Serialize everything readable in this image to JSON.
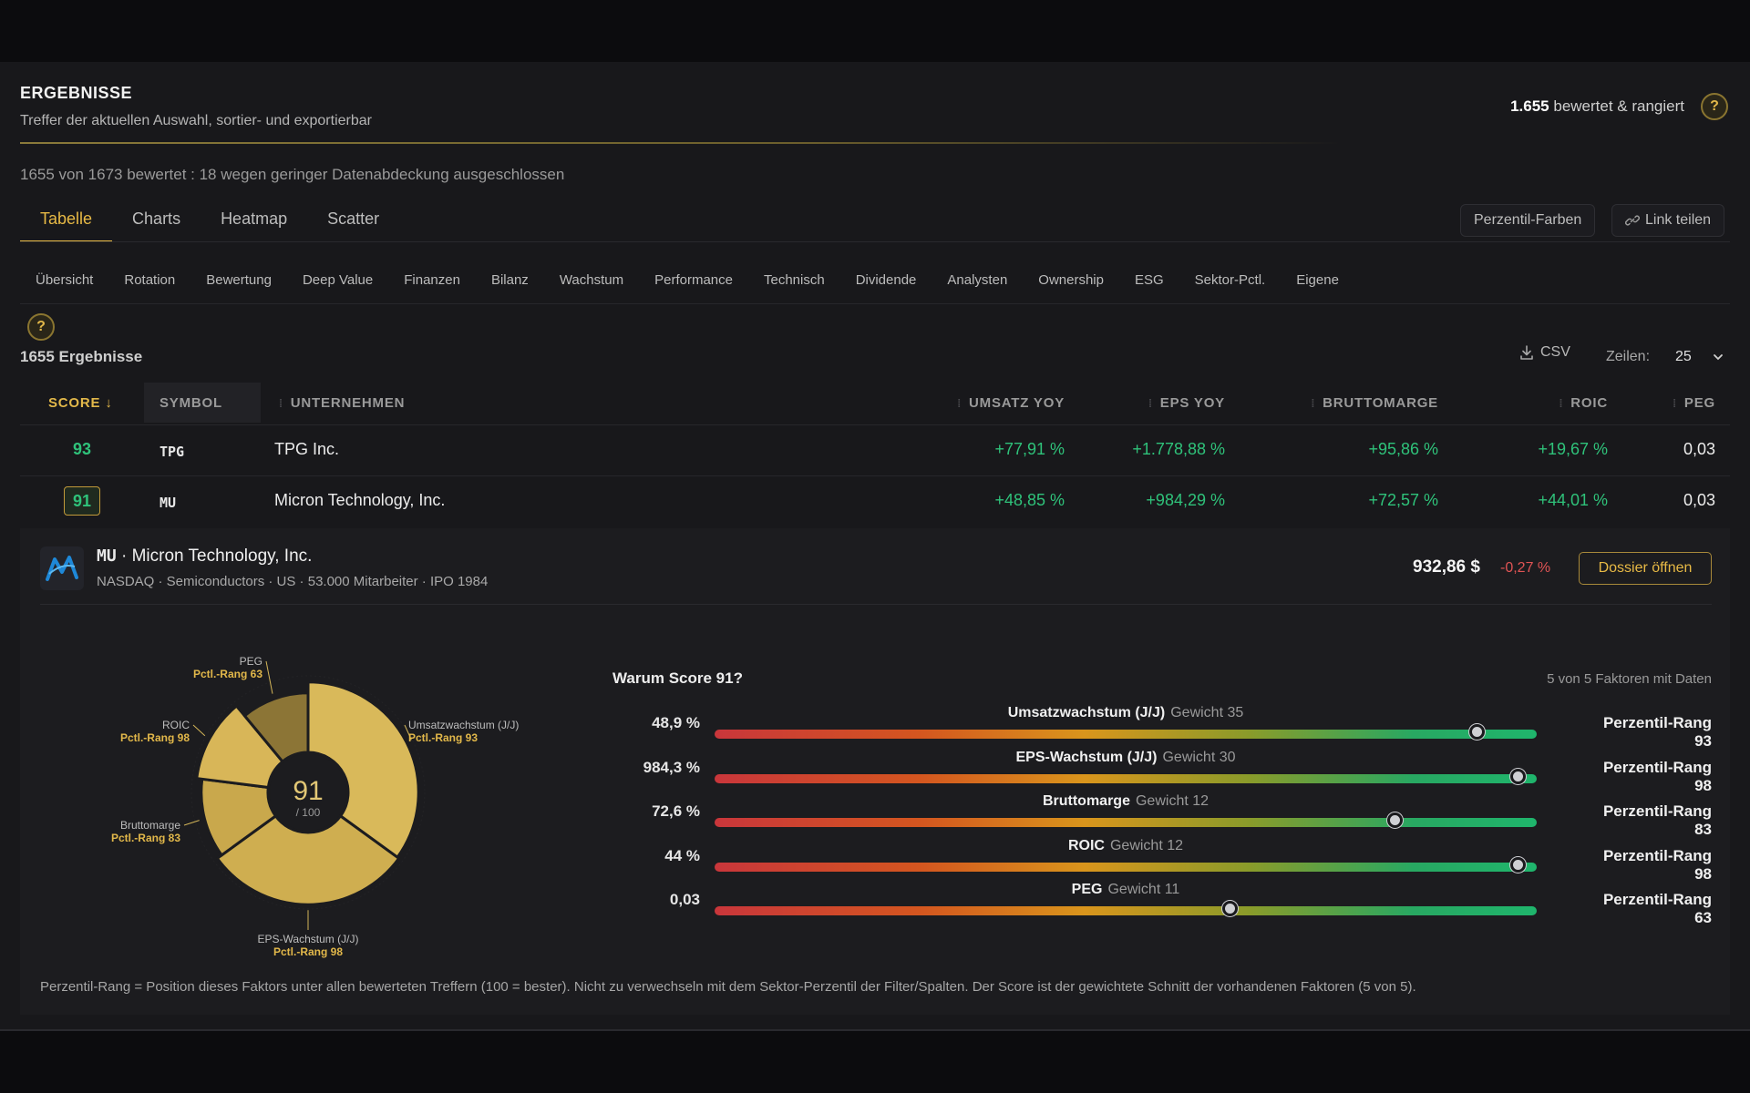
{
  "header": {
    "title": "ERGEBNISSE",
    "subtitle": "Treffer der aktuellen Auswahl, sortier- und exportierbar",
    "count_bold": "1.655",
    "count_text": "bewertet & rangiert",
    "help": "?"
  },
  "coverage_note": "1655 von 1673 bewertet : 18 wegen geringer Datenabdeckung ausgeschlossen",
  "tabs": [
    {
      "label": "Tabelle",
      "active": true
    },
    {
      "label": "Charts"
    },
    {
      "label": "Heatmap"
    },
    {
      "label": "Scatter"
    }
  ],
  "tools": {
    "percentile_colors": "Perzentil-Farben",
    "share_link": "Link teilen"
  },
  "subtabs": [
    "Übersicht",
    "Rotation",
    "Bewertung",
    "Deep Value",
    "Finanzen",
    "Bilanz",
    "Wachstum",
    "Performance",
    "Technisch",
    "Dividende",
    "Analysten",
    "Ownership",
    "ESG",
    "Sektor-Pctl.",
    "Eigene"
  ],
  "results": {
    "count_label": "1655 Ergebnisse",
    "csv": "CSV",
    "rows_label": "Zeilen:",
    "rows_value": "25",
    "help": "?"
  },
  "columns": {
    "score": "SCORE",
    "symbol": "SYMBOL",
    "company": "UNTERNEHMEN",
    "revenue_yoy": "UMSATZ YOY",
    "eps_yoy": "EPS YOY",
    "gross_margin": "BRUTTOMARGE",
    "roic": "ROIC",
    "peg": "PEG"
  },
  "rows": [
    {
      "score": "93",
      "symbol": "TPG",
      "company": "TPG Inc.",
      "revenue_yoy": "+77,91 %",
      "eps_yoy": "+1.778,88 %",
      "gross_margin": "+95,86 %",
      "roic": "+19,67 %",
      "peg": "0,03"
    },
    {
      "score": "91",
      "symbol": "MU",
      "company": "Micron Technology, Inc.",
      "revenue_yoy": "+48,85 %",
      "eps_yoy": "+984,29 %",
      "gross_margin": "+72,57 %",
      "roic": "+44,01 %",
      "peg": "0,03"
    }
  ],
  "detail": {
    "symbol": "MU",
    "title_sep": " · ",
    "name": "Micron Technology, Inc.",
    "meta": "NASDAQ · Semiconductors · US · 53.000 Mitarbeiter · IPO 1984",
    "price": "932,86 $",
    "change": "-0,27 %",
    "dossier": "Dossier öffnen",
    "score_center": "91",
    "score_max": "/ 100",
    "why_title": "Warum Score 91?",
    "why_note": "5 von 5 Faktoren mit Daten",
    "weight_prefix": "Gewicht",
    "footnote": "Perzentil-Rang = Position dieses Faktors unter allen bewerteten Treffern (100 = bester). Nicht zu verwechseln mit dem Sektor-Perzentil der Filter/Spalten. Der Score ist der gewichtete Schnitt der vorhandenen Faktoren (5 von 5)."
  },
  "chart_data": {
    "type": "pie",
    "title": "",
    "center_value": 91,
    "center_max": 100,
    "slices": [
      {
        "label": "Umsatzwachstum (J/J)",
        "weight": 35,
        "rank_label": "Pctl.-Rang 93",
        "percentile": 93
      },
      {
        "label": "EPS-Wachstum (J/J)",
        "weight": 30,
        "rank_label": "Pctl.-Rang 98",
        "percentile": 98
      },
      {
        "label": "Bruttomarge",
        "weight": 12,
        "rank_label": "Pctl.-Rang 83",
        "percentile": 83
      },
      {
        "label": "ROIC",
        "weight": 12,
        "rank_label": "Pctl.-Rang 98",
        "percentile": 98
      },
      {
        "label": "PEG",
        "weight": 11,
        "rank_label": "Pctl.-Rang 63",
        "percentile": 63
      }
    ]
  },
  "factors": [
    {
      "value": "48,9 %",
      "name": "Umsatzwachstum (J/J)",
      "weight": "35",
      "percentile": 93,
      "rank": "Perzentil-Rang 93"
    },
    {
      "value": "984,3 %",
      "name": "EPS-Wachstum (J/J)",
      "weight": "30",
      "percentile": 98,
      "rank": "Perzentil-Rang 98"
    },
    {
      "value": "72,6 %",
      "name": "Bruttomarge",
      "weight": "12",
      "percentile": 83,
      "rank": "Perzentil-Rang 83"
    },
    {
      "value": "44 %",
      "name": "ROIC",
      "weight": "12",
      "percentile": 98,
      "rank": "Perzentil-Rang 98"
    },
    {
      "value": "0,03",
      "name": "PEG",
      "weight": "11",
      "percentile": 63,
      "rank": "Perzentil-Rang 63"
    }
  ],
  "colors": {
    "accent": "#e7b945",
    "positive": "#2fc27a",
    "negative": "#e05454",
    "slice_fill": "#d4b254"
  }
}
